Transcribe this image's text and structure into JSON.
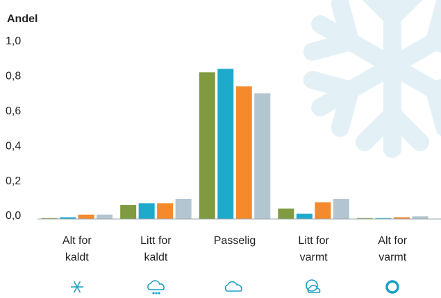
{
  "chart_data": {
    "type": "bar",
    "y_label": "Andel",
    "categories": [
      "Alt for\nkaldt",
      "Litt for\nkaldt",
      "Passelig",
      "Litt for\nvarmt",
      "Alt for\nvarmt"
    ],
    "series": [
      {
        "color": "#7f9a3f",
        "values": [
          0.005,
          0.08,
          0.84,
          0.06,
          0.005
        ]
      },
      {
        "color": "#1eaacb",
        "values": [
          0.01,
          0.09,
          0.86,
          0.03,
          0.005
        ]
      },
      {
        "color": "#f58a2c",
        "values": [
          0.025,
          0.09,
          0.76,
          0.095,
          0.01
        ]
      },
      {
        "color": "#b3c5d1",
        "values": [
          0.025,
          0.115,
          0.72,
          0.115,
          0.015
        ]
      }
    ],
    "ylim": [
      0,
      1
    ],
    "yticks": [
      {
        "value": 0,
        "label": "0,0"
      },
      {
        "value": 0.2,
        "label": "0,2"
      },
      {
        "value": 0.4,
        "label": "0,4"
      },
      {
        "value": 0.6,
        "label": "0,6"
      },
      {
        "value": 0.8,
        "label": "0,8"
      },
      {
        "value": 1,
        "label": "1,0"
      }
    ],
    "grid": false
  }
}
